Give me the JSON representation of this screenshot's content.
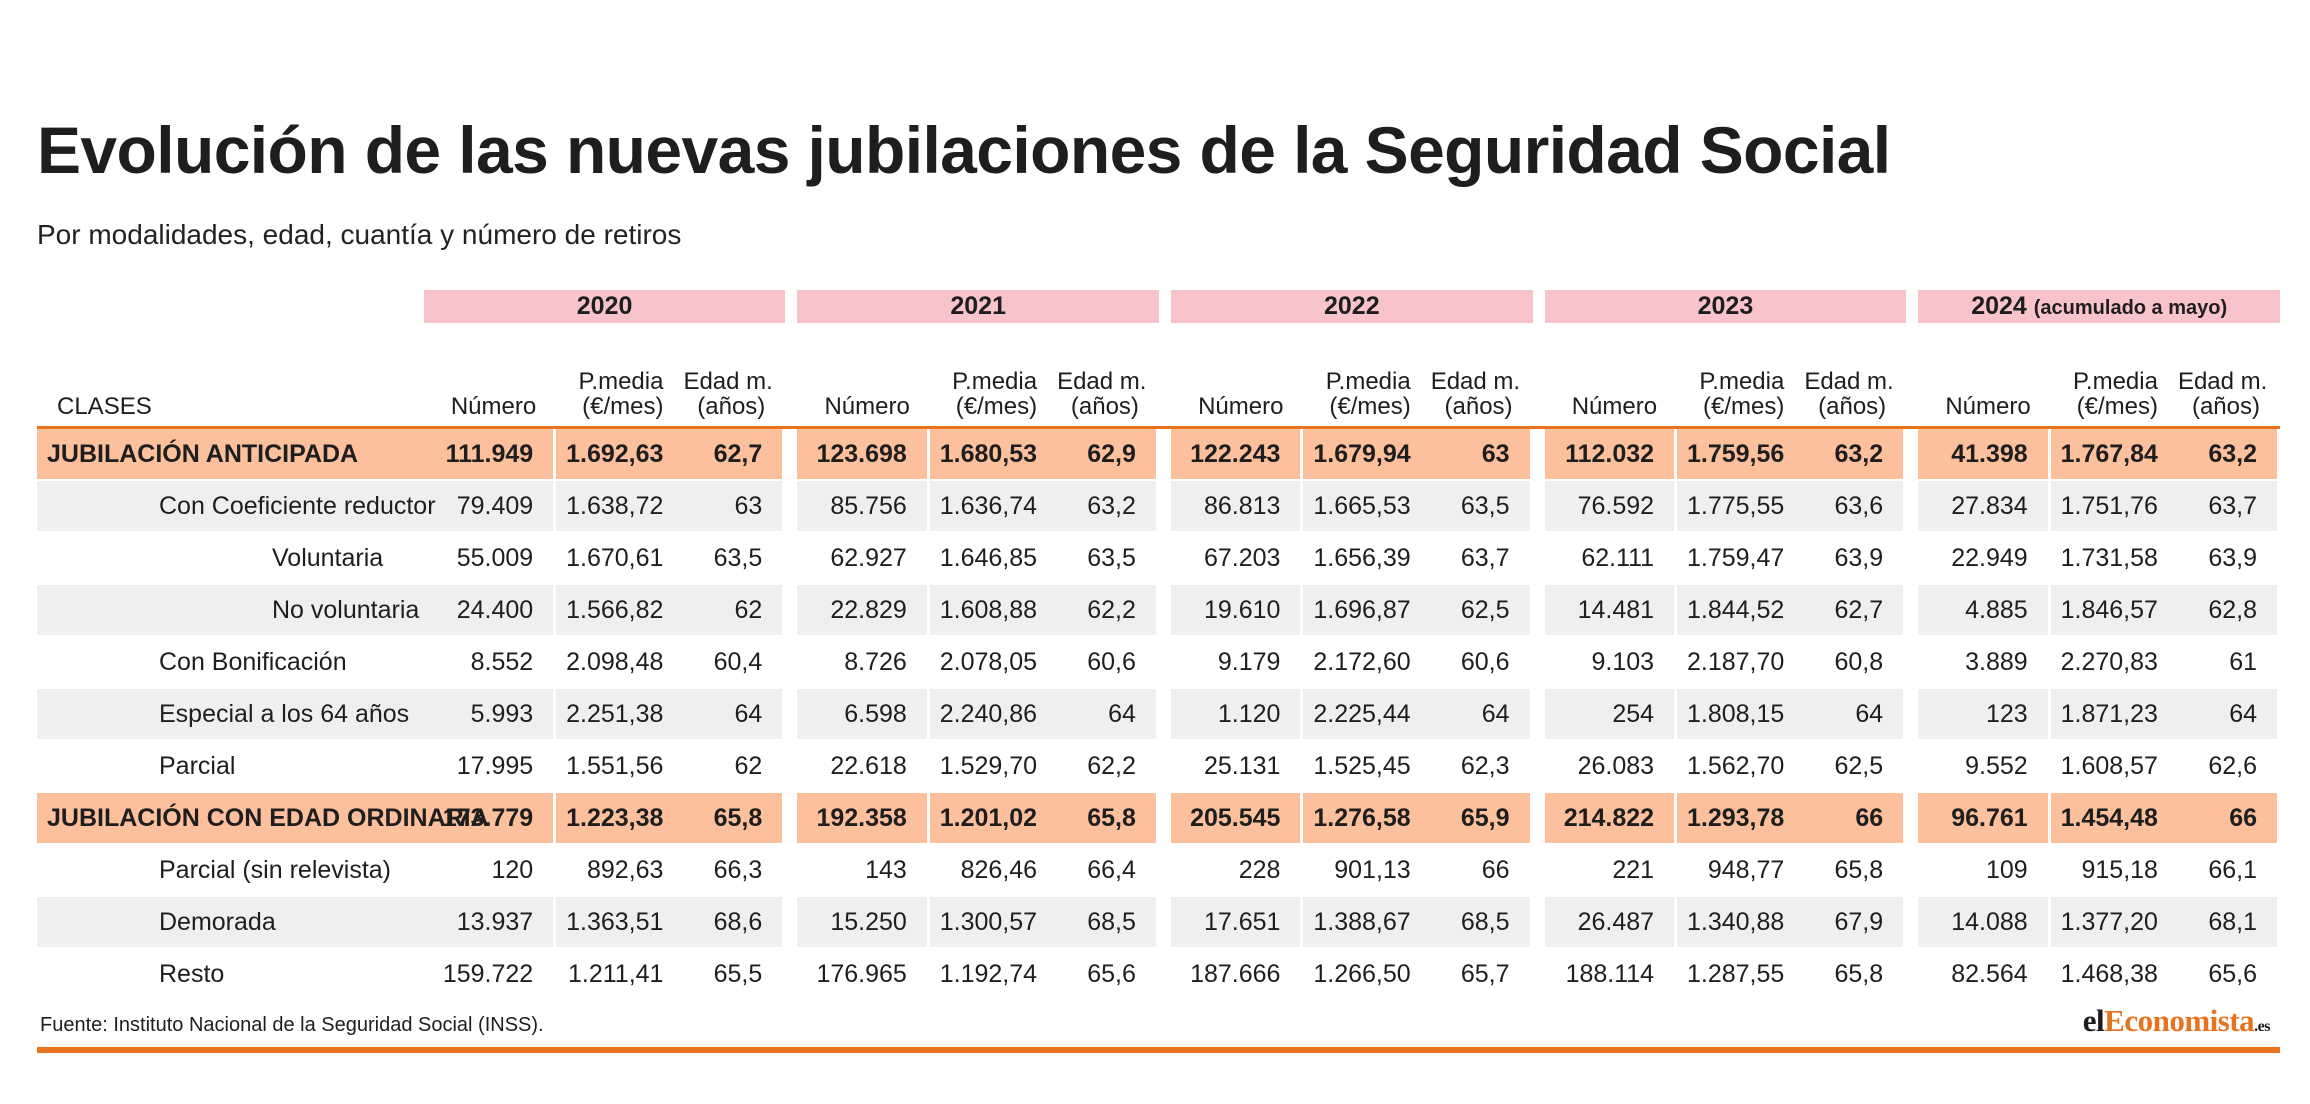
{
  "title": "Evolución de las nuevas jubilaciones de la Seguridad Social",
  "subtitle": "Por modalidades, edad, cuantía y número de retiros",
  "years": [
    {
      "label": "2020",
      "note": ""
    },
    {
      "label": "2021",
      "note": ""
    },
    {
      "label": "2022",
      "note": ""
    },
    {
      "label": "2023",
      "note": ""
    },
    {
      "label": "2024",
      "note": "(acumulado a mayo)"
    }
  ],
  "column_headers": {
    "clases": "CLASES",
    "numero": "Número",
    "pmedia_line1": "P.media",
    "pmedia_line2": "(€/mes)",
    "edad_line1": "Edad m.",
    "edad_line2": "(años)"
  },
  "rows": [
    {
      "label": "JUBILACIÓN ANTICIPADA",
      "level": 0,
      "style": "main",
      "values": [
        [
          "111.949",
          "1.692,63",
          "62,7"
        ],
        [
          "123.698",
          "1.680,53",
          "62,9"
        ],
        [
          "122.243",
          "1.679,94",
          "63"
        ],
        [
          "112.032",
          "1.759,56",
          "63,2"
        ],
        [
          "41.398",
          "1.767,84",
          "63,2"
        ]
      ]
    },
    {
      "label": "Con Coeficiente reductor",
      "level": 1,
      "style": "alt",
      "values": [
        [
          "79.409",
          "1.638,72",
          "63"
        ],
        [
          "85.756",
          "1.636,74",
          "63,2"
        ],
        [
          "86.813",
          "1.665,53",
          "63,5"
        ],
        [
          "76.592",
          "1.775,55",
          "63,6"
        ],
        [
          "27.834",
          "1.751,76",
          "63,7"
        ]
      ]
    },
    {
      "label": "Voluntaria",
      "level": 2,
      "style": "plain",
      "values": [
        [
          "55.009",
          "1.670,61",
          "63,5"
        ],
        [
          "62.927",
          "1.646,85",
          "63,5"
        ],
        [
          "67.203",
          "1.656,39",
          "63,7"
        ],
        [
          "62.111",
          "1.759,47",
          "63,9"
        ],
        [
          "22.949",
          "1.731,58",
          "63,9"
        ]
      ]
    },
    {
      "label": "No voluntaria",
      "level": 2,
      "style": "alt",
      "values": [
        [
          "24.400",
          "1.566,82",
          "62"
        ],
        [
          "22.829",
          "1.608,88",
          "62,2"
        ],
        [
          "19.610",
          "1.696,87",
          "62,5"
        ],
        [
          "14.481",
          "1.844,52",
          "62,7"
        ],
        [
          "4.885",
          "1.846,57",
          "62,8"
        ]
      ]
    },
    {
      "label": "Con Bonificación",
      "level": 1,
      "style": "plain",
      "values": [
        [
          "8.552",
          "2.098,48",
          "60,4"
        ],
        [
          "8.726",
          "2.078,05",
          "60,6"
        ],
        [
          "9.179",
          "2.172,60",
          "60,6"
        ],
        [
          "9.103",
          "2.187,70",
          "60,8"
        ],
        [
          "3.889",
          "2.270,83",
          "61"
        ]
      ]
    },
    {
      "label": "Especial a los 64 años",
      "level": 1,
      "style": "alt",
      "values": [
        [
          "5.993",
          "2.251,38",
          "64"
        ],
        [
          "6.598",
          "2.240,86",
          "64"
        ],
        [
          "1.120",
          "2.225,44",
          "64"
        ],
        [
          "254",
          "1.808,15",
          "64"
        ],
        [
          "123",
          "1.871,23",
          "64"
        ]
      ]
    },
    {
      "label": "Parcial",
      "level": 1,
      "style": "plain",
      "values": [
        [
          "17.995",
          "1.551,56",
          "62"
        ],
        [
          "22.618",
          "1.529,70",
          "62,2"
        ],
        [
          "25.131",
          "1.525,45",
          "62,3"
        ],
        [
          "26.083",
          "1.562,70",
          "62,5"
        ],
        [
          "9.552",
          "1.608,57",
          "62,6"
        ]
      ]
    },
    {
      "label": "JUBILACIÓN CON EDAD ORDINARIA",
      "level": 0,
      "style": "main",
      "values": [
        [
          "173.779",
          "1.223,38",
          "65,8"
        ],
        [
          "192.358",
          "1.201,02",
          "65,8"
        ],
        [
          "205.545",
          "1.276,58",
          "65,9"
        ],
        [
          "214.822",
          "1.293,78",
          "66"
        ],
        [
          "96.761",
          "1.454,48",
          "66"
        ]
      ]
    },
    {
      "label": "Parcial (sin relevista)",
      "level": 1,
      "style": "plain",
      "values": [
        [
          "120",
          "892,63",
          "66,3"
        ],
        [
          "143",
          "826,46",
          "66,4"
        ],
        [
          "228",
          "901,13",
          "66"
        ],
        [
          "221",
          "948,77",
          "65,8"
        ],
        [
          "109",
          "915,18",
          "66,1"
        ]
      ]
    },
    {
      "label": "Demorada",
      "level": 1,
      "style": "alt",
      "values": [
        [
          "13.937",
          "1.363,51",
          "68,6"
        ],
        [
          "15.250",
          "1.300,57",
          "68,5"
        ],
        [
          "17.651",
          "1.388,67",
          "68,5"
        ],
        [
          "26.487",
          "1.340,88",
          "67,9"
        ],
        [
          "14.088",
          "1.377,20",
          "68,1"
        ]
      ]
    },
    {
      "label": "Resto",
      "level": 1,
      "style": "plain",
      "values": [
        [
          "159.722",
          "1.211,41",
          "65,5"
        ],
        [
          "176.965",
          "1.192,74",
          "65,6"
        ],
        [
          "187.666",
          "1.266,50",
          "65,7"
        ],
        [
          "188.114",
          "1.287,55",
          "65,8"
        ],
        [
          "82.564",
          "1.468,38",
          "65,6"
        ]
      ]
    }
  ],
  "source": "Fuente: Instituto Nacional de la Seguridad Social (INSS).",
  "logo": {
    "part1": "el",
    "part2": "Economista",
    "part3": ".es"
  },
  "colors": {
    "accent": "#e8731e",
    "year_band": "#f8c4c9",
    "main_row": "#fcc09c",
    "alt_row": "#efefef"
  }
}
